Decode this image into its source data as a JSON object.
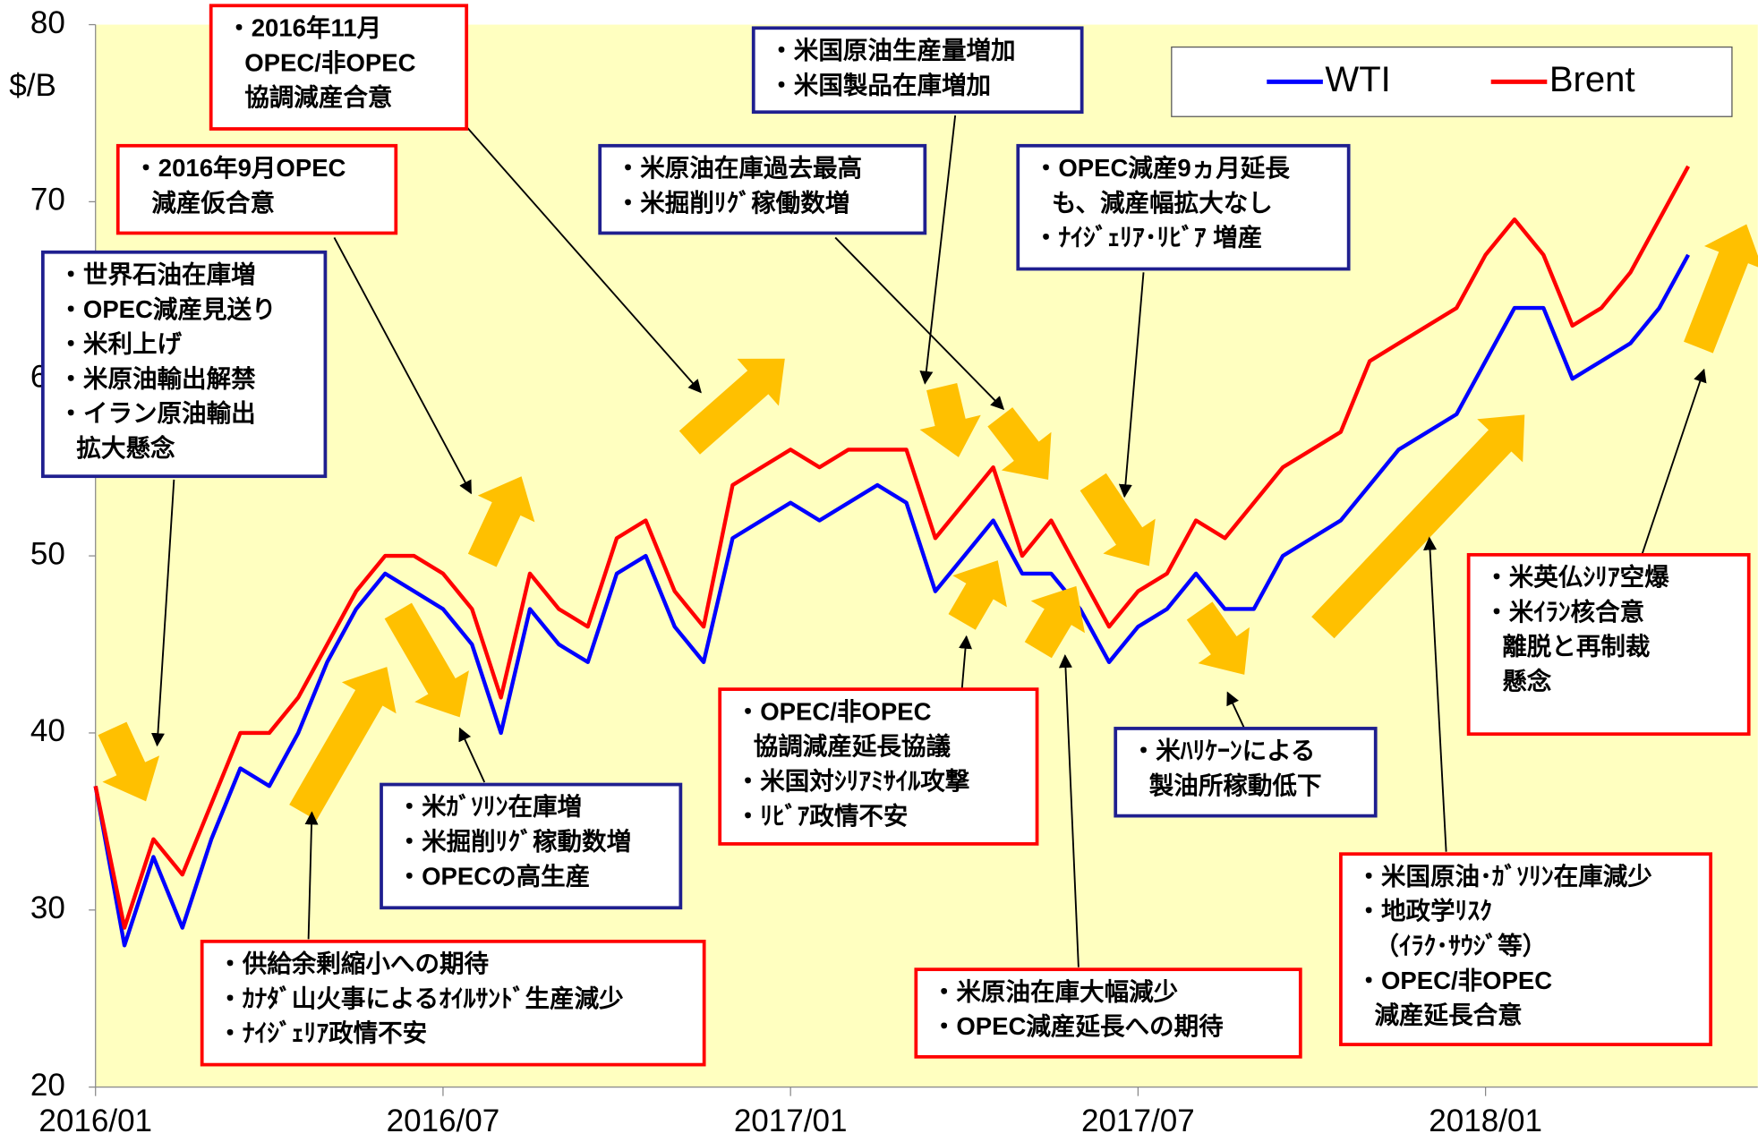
{
  "chart_data": {
    "type": "line",
    "y_label": "$/B",
    "categories": [
      "2016/01",
      null,
      null,
      null,
      null,
      null,
      null,
      null,
      null,
      null,
      null,
      null,
      "2016/07",
      null,
      null,
      null,
      null,
      null,
      null,
      null,
      null,
      null,
      null,
      null,
      "2017/01",
      null,
      null,
      null,
      null,
      null,
      null,
      null,
      null,
      null,
      null,
      null,
      "2017/07",
      null,
      null,
      null,
      null,
      null,
      null,
      null,
      null,
      null,
      null,
      null,
      "2018/01",
      null,
      null,
      null,
      null,
      null,
      null,
      null,
      null,
      null
    ],
    "series": [
      {
        "name": "WTI",
        "color": "#0000ff",
        "values": [
          37,
          28,
          33,
          29,
          34,
          38,
          37,
          40,
          44,
          47,
          49,
          48,
          47,
          45,
          40,
          47,
          45,
          44,
          49,
          50,
          46,
          44,
          51,
          52,
          53,
          52,
          53,
          54,
          53,
          48,
          50,
          52,
          49,
          49,
          47,
          44,
          46,
          47,
          49,
          47,
          47,
          50,
          51,
          52,
          54,
          56,
          57,
          58,
          61,
          64,
          64,
          60,
          61,
          62,
          64,
          67,
          null,
          null
        ]
      },
      {
        "name": "Brent",
        "color": "#ff0000",
        "values": [
          37,
          29,
          34,
          32,
          36,
          40,
          40,
          42,
          45,
          48,
          50,
          50,
          49,
          47,
          42,
          49,
          47,
          46,
          51,
          52,
          48,
          46,
          54,
          55,
          56,
          55,
          56,
          56,
          56,
          51,
          53,
          55,
          50,
          52,
          49,
          46,
          48,
          49,
          52,
          51,
          53,
          55,
          56,
          57,
          61,
          62,
          63,
          64,
          67,
          69,
          67,
          63,
          64,
          66,
          69,
          72,
          null,
          null
        ]
      }
    ],
    "ylim": [
      20,
      80
    ],
    "yticks": [
      20,
      30,
      40,
      50,
      60,
      70,
      80
    ],
    "legend": "top-right",
    "annotations": [
      {
        "color": "red",
        "lines": [
          "・2016年11月",
          "OPEC/非OPEC",
          "協調減産合意"
        ]
      },
      {
        "color": "red",
        "lines": [
          "・2016年9月OPEC",
          "減産仮合意"
        ]
      },
      {
        "color": "blue",
        "lines": [
          "・世界石油在庫増",
          "・OPEC減産見送り",
          "・米利上げ",
          "・米原油輸出解禁",
          "・イラン原油輸出",
          "拡大懸念"
        ]
      },
      {
        "color": "blue",
        "lines": [
          "・米国原油生産量増加",
          "・米国製品在庫増加"
        ]
      },
      {
        "color": "blue",
        "lines": [
          "・米原油在庫過去最高",
          "・米掘削ﾘｸﾞ稼働数増"
        ]
      },
      {
        "color": "blue",
        "lines": [
          "・OPEC減産9ヵ月延長",
          "も、減産幅拡大なし",
          "・ﾅｲｼﾞｪﾘｱ･ﾘﾋﾞｱ 増産"
        ]
      },
      {
        "color": "blue",
        "lines": [
          "・米ｶﾞｿﾘﾝ在庫増",
          "・米掘削ﾘｸﾞ稼動数増",
          "・OPECの高生産"
        ]
      },
      {
        "color": "red",
        "lines": [
          "・供給余剰縮小への期待",
          "・ｶﾅﾀﾞ山火事によるｵｲﾙｻﾝﾄﾞ生産減少",
          "・ﾅｲｼﾞｪﾘｱ政情不安"
        ]
      },
      {
        "color": "red",
        "lines": [
          "・OPEC/非OPEC",
          "協調減産延長協議",
          "・米国対ｼﾘｱﾐｻｲﾙ攻撃",
          "・ﾘﾋﾞｱ政情不安"
        ]
      },
      {
        "color": "blue",
        "lines": [
          "・米ﾊﾘｹｰﾝによる",
          "製油所稼動低下"
        ]
      },
      {
        "color": "red",
        "lines": [
          "・米原油在庫大幅減少",
          "・OPEC減産延長への期待"
        ]
      },
      {
        "color": "red",
        "lines": [
          "・米国原油･ｶﾞｿﾘﾝ在庫減少",
          "・地政学ﾘｽｸ",
          "（ｲﾗｸ･ｻｳｼﾞ等）",
          "・OPEC/非OPEC",
          "減産延長合意"
        ]
      },
      {
        "color": "red",
        "lines": [
          "・米英仏ｼﾘｱ空爆",
          "・米ｲﾗﾝ核合意",
          "離脱と再制裁",
          "懸念"
        ]
      }
    ]
  }
}
